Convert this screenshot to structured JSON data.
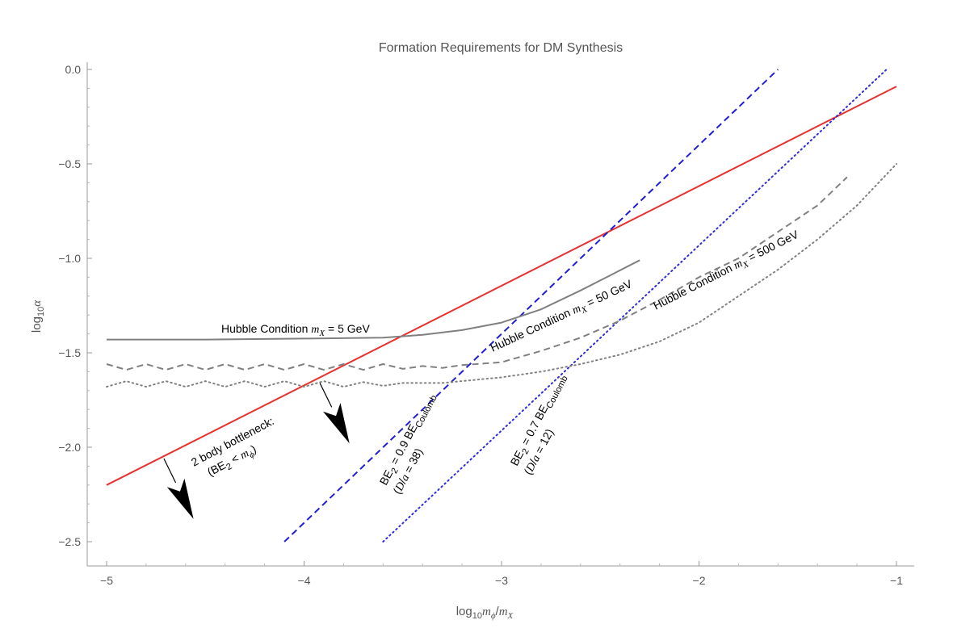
{
  "chart_data": {
    "type": "line",
    "title": "Formation Requirements for DM Synthesis",
    "xlabel": {
      "base": "log",
      "sub": "10",
      "num": "m",
      "num_sub": "ϕ",
      "slash": "/",
      "den": "m",
      "den_sub": "X"
    },
    "ylabel": {
      "base": "log",
      "sub": "10",
      "var": "α"
    },
    "xlim": [
      -5,
      -1
    ],
    "ylim": [
      -2.6,
      0.05
    ],
    "x_ticks": [
      -5,
      -4,
      -3,
      -2,
      -1
    ],
    "x_tick_labels": [
      "−5",
      "−4",
      "−3",
      "−2",
      "−1"
    ],
    "y_ticks": [
      0.0,
      -0.5,
      -1.0,
      -1.5,
      -2.0,
      -2.5
    ],
    "y_tick_labels": [
      "0.0",
      "−0.5",
      "−1.0",
      "−1.5",
      "−2.0",
      "−2.5"
    ],
    "grid": false,
    "series": [
      {
        "style": "solid",
        "color": "#e8312f",
        "points": [
          [
            -5,
            -2.2
          ],
          [
            -1,
            -0.09
          ]
        ]
      },
      {
        "style": "dashed",
        "color": "#1f1fd1",
        "points": [
          [
            -4.1,
            -2.5
          ],
          [
            -1.6,
            0.0
          ]
        ]
      },
      {
        "style": "dotted",
        "color": "#2d2dd6",
        "points": [
          [
            -3.6,
            -2.5
          ],
          [
            -1.05,
            0.0
          ]
        ]
      },
      {
        "style": "solid",
        "color": "#808080",
        "points": [
          [
            -5,
            -1.43
          ],
          [
            -4.5,
            -1.43
          ],
          [
            -4.0,
            -1.425
          ],
          [
            -3.6,
            -1.42
          ],
          [
            -3.4,
            -1.405
          ],
          [
            -3.2,
            -1.38
          ],
          [
            -3.0,
            -1.34
          ],
          [
            -2.8,
            -1.27
          ],
          [
            -2.6,
            -1.17
          ],
          [
            -2.45,
            -1.09
          ],
          [
            -2.3,
            -1.01
          ]
        ]
      },
      {
        "style": "dashed",
        "color": "#808080",
        "points": [
          [
            -5,
            -1.56
          ],
          [
            -4.9,
            -1.59
          ],
          [
            -4.8,
            -1.56
          ],
          [
            -4.7,
            -1.59
          ],
          [
            -4.6,
            -1.56
          ],
          [
            -4.5,
            -1.59
          ],
          [
            -4.4,
            -1.56
          ],
          [
            -4.3,
            -1.59
          ],
          [
            -4.2,
            -1.56
          ],
          [
            -4.1,
            -1.59
          ],
          [
            -4.0,
            -1.56
          ],
          [
            -3.9,
            -1.59
          ],
          [
            -3.8,
            -1.56
          ],
          [
            -3.7,
            -1.59
          ],
          [
            -3.6,
            -1.56
          ],
          [
            -3.5,
            -1.585
          ],
          [
            -3.4,
            -1.57
          ],
          [
            -3.3,
            -1.58
          ],
          [
            -3.2,
            -1.565
          ],
          [
            -3.0,
            -1.55
          ],
          [
            -2.8,
            -1.49
          ],
          [
            -2.6,
            -1.42
          ],
          [
            -2.4,
            -1.33
          ],
          [
            -2.2,
            -1.22
          ],
          [
            -2.0,
            -1.1
          ],
          [
            -1.8,
            -1.0
          ],
          [
            -1.6,
            -0.86
          ],
          [
            -1.4,
            -0.72
          ],
          [
            -1.25,
            -0.57
          ]
        ]
      },
      {
        "style": "dotted",
        "color": "#808080",
        "points": [
          [
            -5,
            -1.68
          ],
          [
            -4.9,
            -1.65
          ],
          [
            -4.8,
            -1.68
          ],
          [
            -4.7,
            -1.65
          ],
          [
            -4.6,
            -1.68
          ],
          [
            -4.5,
            -1.65
          ],
          [
            -4.4,
            -1.68
          ],
          [
            -4.3,
            -1.65
          ],
          [
            -4.2,
            -1.68
          ],
          [
            -4.1,
            -1.65
          ],
          [
            -4.0,
            -1.68
          ],
          [
            -3.9,
            -1.65
          ],
          [
            -3.8,
            -1.68
          ],
          [
            -3.7,
            -1.655
          ],
          [
            -3.6,
            -1.675
          ],
          [
            -3.5,
            -1.66
          ],
          [
            -3.3,
            -1.66
          ],
          [
            -3.0,
            -1.63
          ],
          [
            -2.8,
            -1.6
          ],
          [
            -2.6,
            -1.56
          ],
          [
            -2.4,
            -1.51
          ],
          [
            -2.2,
            -1.44
          ],
          [
            -2.0,
            -1.34
          ],
          [
            -1.8,
            -1.2
          ],
          [
            -1.6,
            -1.06
          ],
          [
            -1.4,
            -0.9
          ],
          [
            -1.2,
            -0.72
          ],
          [
            -1.0,
            -0.5
          ]
        ]
      }
    ],
    "annotations": {
      "hubble5": {
        "text": "Hubble Condition ",
        "var": "m",
        "sub": "X",
        "rest": " = 5 GeV"
      },
      "hubble50": {
        "text": "Hubble Condition ",
        "var": "m",
        "sub": "X",
        "rest": " = 50 GeV"
      },
      "hubble500": {
        "text": "Hubble Condition ",
        "var": "m",
        "sub": "X",
        "rest": " = 500 GeV"
      },
      "bottleneck_line1": "2 body bottleneck:",
      "bottleneck_line2": {
        "open": "(BE",
        "sub": "2",
        "mid": " < ",
        "var": "m",
        "var_sub": "ϕ",
        "close": ")"
      },
      "be09": {
        "be": "BE",
        "sub": "2",
        "mid": " = 0.9 BE",
        "sub2": "Coulomb",
        "line2_open": "(",
        "D": "D",
        "slash": "/",
        "a": "a",
        "line2_rest": " = 38)"
      },
      "be07": {
        "be": "BE",
        "sub": "2",
        "mid": " = 0.7 BE",
        "sub2": "Coulomb",
        "line2_open": "(",
        "D": "D",
        "slash": "/",
        "a": "a",
        "line2_rest": " = 12)"
      }
    },
    "arrows": [
      {
        "from": [
          -3.92,
          -1.66
        ],
        "to": [
          -3.77,
          -1.98
        ]
      },
      {
        "from": [
          -4.71,
          -2.06
        ],
        "to": [
          -4.56,
          -2.38
        ]
      }
    ]
  }
}
